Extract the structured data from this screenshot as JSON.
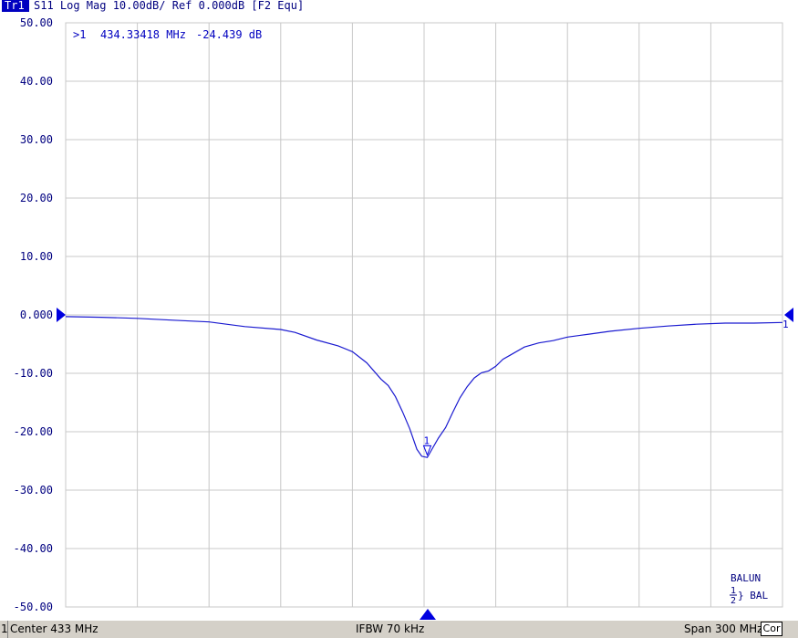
{
  "header": {
    "trace_id": "Tr1",
    "trace_text": "S11 Log Mag 10.00dB/ Ref 0.000dB [F2 Equ]"
  },
  "marker_readout": {
    "label": ">1",
    "frequency": "434.33418 MHz",
    "value": "-24.439 dB"
  },
  "side_labels": {
    "right_ref_number": "1",
    "balun_line1": "BALUN",
    "balun_line2": "} BAL",
    "balun_num_top": "1",
    "balun_num_bottom": "2"
  },
  "status_bar": {
    "left_tag": "1",
    "center": "Center 433 MHz",
    "ifbw": "IFBW 70 kHz",
    "span": "Span 300 MHz",
    "cor": "Cor"
  },
  "colors": {
    "trace": "#1a1ad0",
    "grid": "#c8c8c8",
    "axis_text": "#000080",
    "marker": "#0000e0"
  },
  "chart_data": {
    "type": "line",
    "title": "S11 Log Mag 10.00dB/ Ref 0.000dB [F2 Equ]",
    "x_unit": "MHz",
    "xlim": [
      283,
      583
    ],
    "ylim": [
      -50,
      50
    ],
    "y_divisions": 10,
    "x_divisions": 10,
    "y_tick_labels": [
      "50.00",
      "40.00",
      "30.00",
      "20.00",
      "10.00",
      "0.000",
      "-10.00",
      "-20.00",
      "-30.00",
      "-40.00",
      "-50.00"
    ],
    "grid": true,
    "reference_level_db": 0,
    "marker": {
      "number": "1",
      "x": 434.33418,
      "y": -24.439
    },
    "series": [
      {
        "x": [
          283,
          298,
          313,
          328,
          343,
          358,
          373,
          379,
          388,
          397,
          403,
          409,
          415,
          418,
          421,
          424,
          427,
          430,
          432,
          434.33,
          436,
          439,
          442,
          445,
          448,
          451,
          454,
          457,
          460,
          463,
          466,
          469,
          475,
          481,
          487,
          493,
          502,
          511,
          523,
          535,
          547,
          559,
          571,
          583
        ],
        "y": [
          -0.3,
          -0.4,
          -0.6,
          -0.9,
          -1.2,
          -2.0,
          -2.5,
          -3.0,
          -4.3,
          -5.3,
          -6.3,
          -8.2,
          -11.0,
          -12.1,
          -14.0,
          -16.6,
          -19.5,
          -23.0,
          -24.2,
          -24.4,
          -23.2,
          -21.1,
          -19.3,
          -16.7,
          -14.2,
          -12.3,
          -10.8,
          -9.9,
          -9.6,
          -8.8,
          -7.6,
          -6.9,
          -5.5,
          -4.8,
          -4.4,
          -3.8,
          -3.3,
          -2.8,
          -2.3,
          -1.9,
          -1.6,
          -1.4,
          -1.4,
          -1.3
        ]
      }
    ]
  }
}
